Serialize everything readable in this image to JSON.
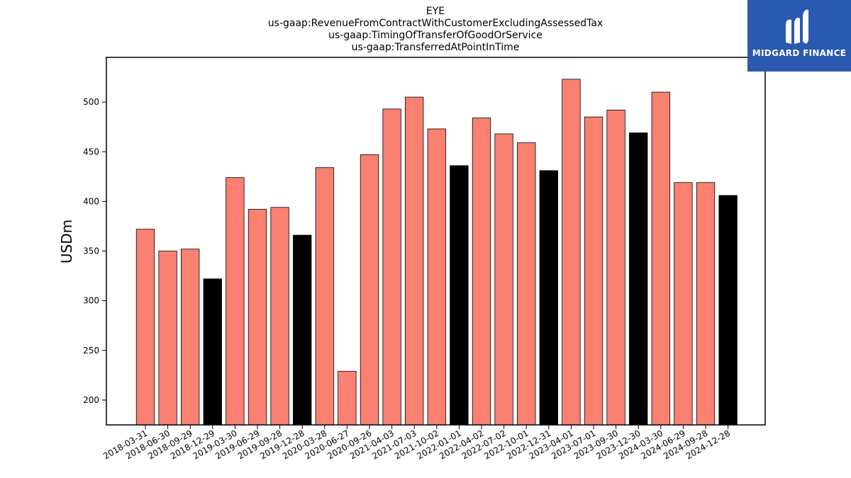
{
  "brand": {
    "name": "MIDGARD FINANCE",
    "color": "#2a59b0",
    "icon": "midgard-logo-icon"
  },
  "chart_data": {
    "type": "bar",
    "title_lines": [
      "EYE",
      "us-gaap:RevenueFromContractWithCustomerExcludingAssessedTax",
      "us-gaap:TimingOfTransferOfGoodOrService",
      "us-gaap:TransferredAtPointInTime"
    ],
    "xlabel": "",
    "ylabel": "USDm",
    "ylim": [
      175,
      545
    ],
    "yticks": [
      200,
      250,
      300,
      350,
      400,
      450,
      500
    ],
    "colors": {
      "quarter": "#fa8072",
      "fiscal_year_end": "#000000",
      "edge": "#000000"
    },
    "categories": [
      "2018-03-31",
      "2018-06-30",
      "2018-09-29",
      "2018-12-29",
      "2019-03-30",
      "2019-06-29",
      "2019-09-28",
      "2019-12-28",
      "2020-03-28",
      "2020-06-27",
      "2020-09-26",
      "2021-04-03",
      "2021-07-03",
      "2021-10-02",
      "2022-01-01",
      "2022-04-02",
      "2022-07-02",
      "2022-10-01",
      "2022-12-31",
      "2023-04-01",
      "2023-07-01",
      "2023-09-30",
      "2023-12-30",
      "2024-03-30",
      "2024-06-29",
      "2024-09-28",
      "2024-12-28"
    ],
    "values": [
      372,
      350,
      352,
      322,
      424,
      392,
      394,
      366,
      434,
      229,
      447,
      493,
      505,
      473,
      436,
      484,
      468,
      459,
      431,
      523,
      485,
      492,
      469,
      510,
      419,
      419,
      406
    ],
    "highlight": [
      false,
      false,
      false,
      true,
      false,
      false,
      false,
      true,
      false,
      false,
      false,
      false,
      false,
      false,
      true,
      false,
      false,
      false,
      true,
      false,
      false,
      false,
      true,
      false,
      false,
      false,
      true
    ],
    "grid": false,
    "legend": "none"
  }
}
